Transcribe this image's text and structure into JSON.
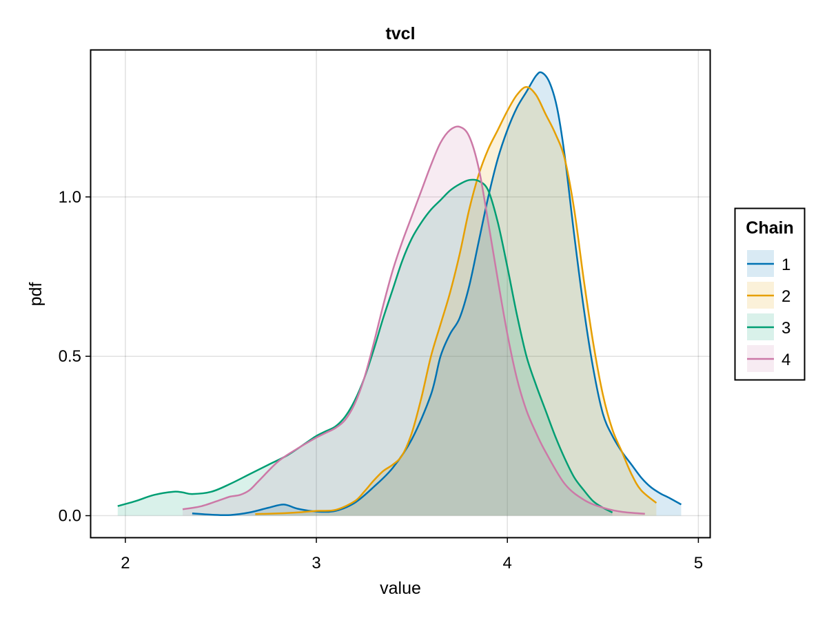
{
  "chart_data": {
    "type": "area",
    "title": "tvcl",
    "xlabel": "value",
    "ylabel": "pdf",
    "xlim": [
      1.82,
      5.06
    ],
    "ylim": [
      -0.068,
      1.46
    ],
    "xticks": [
      "2",
      "3",
      "4",
      "5"
    ],
    "xtick_values": [
      2,
      3,
      4,
      5
    ],
    "yticks": [
      "0.0",
      "0.5",
      "1.0"
    ],
    "ytick_values": [
      0,
      0.5,
      1.0
    ],
    "grid": true,
    "legend": {
      "title": "Chain",
      "placement": "right"
    },
    "series": [
      {
        "name": "1",
        "color": "#0072b2",
        "x": [
          2.35,
          2.45,
          2.55,
          2.65,
          2.75,
          2.83,
          2.9,
          3.0,
          3.1,
          3.2,
          3.3,
          3.4,
          3.5,
          3.6,
          3.65,
          3.7,
          3.75,
          3.8,
          3.85,
          3.9,
          3.95,
          4.0,
          4.05,
          4.1,
          4.15,
          4.18,
          4.22,
          4.26,
          4.3,
          4.35,
          4.4,
          4.45,
          4.5,
          4.55,
          4.6,
          4.65,
          4.7,
          4.75,
          4.8,
          4.85,
          4.91
        ],
        "y": [
          0.007,
          0.003,
          0.002,
          0.01,
          0.025,
          0.035,
          0.022,
          0.013,
          0.015,
          0.04,
          0.09,
          0.15,
          0.24,
          0.38,
          0.5,
          0.57,
          0.62,
          0.72,
          0.86,
          1.0,
          1.12,
          1.21,
          1.28,
          1.33,
          1.38,
          1.39,
          1.36,
          1.28,
          1.13,
          0.88,
          0.65,
          0.46,
          0.32,
          0.25,
          0.2,
          0.16,
          0.12,
          0.09,
          0.07,
          0.055,
          0.035
        ]
      },
      {
        "name": "2",
        "color": "#e69f00",
        "x": [
          2.68,
          2.8,
          2.9,
          3.0,
          3.1,
          3.2,
          3.25,
          3.3,
          3.35,
          3.4,
          3.45,
          3.5,
          3.55,
          3.6,
          3.65,
          3.7,
          3.75,
          3.8,
          3.85,
          3.9,
          3.95,
          4.0,
          4.05,
          4.1,
          4.15,
          4.2,
          4.25,
          4.3,
          4.35,
          4.4,
          4.45,
          4.5,
          4.55,
          4.6,
          4.65,
          4.7,
          4.78
        ],
        "y": [
          0.005,
          0.007,
          0.01,
          0.015,
          0.018,
          0.045,
          0.075,
          0.11,
          0.14,
          0.16,
          0.19,
          0.26,
          0.37,
          0.5,
          0.6,
          0.7,
          0.82,
          0.96,
          1.07,
          1.15,
          1.21,
          1.27,
          1.32,
          1.345,
          1.32,
          1.26,
          1.2,
          1.12,
          0.96,
          0.74,
          0.54,
          0.38,
          0.27,
          0.2,
          0.13,
          0.08,
          0.04
        ]
      },
      {
        "name": "3",
        "color": "#009e73",
        "x": [
          1.96,
          2.05,
          2.15,
          2.25,
          2.3,
          2.35,
          2.45,
          2.55,
          2.65,
          2.75,
          2.85,
          2.95,
          3.0,
          3.05,
          3.1,
          3.15,
          3.2,
          3.25,
          3.3,
          3.35,
          3.4,
          3.45,
          3.5,
          3.55,
          3.6,
          3.65,
          3.7,
          3.75,
          3.8,
          3.85,
          3.9,
          3.95,
          4.0,
          4.05,
          4.1,
          4.15,
          4.2,
          4.25,
          4.3,
          4.35,
          4.4,
          4.45,
          4.5,
          4.55
        ],
        "y": [
          0.03,
          0.045,
          0.065,
          0.075,
          0.073,
          0.068,
          0.075,
          0.1,
          0.13,
          0.16,
          0.19,
          0.23,
          0.25,
          0.265,
          0.28,
          0.31,
          0.36,
          0.43,
          0.52,
          0.62,
          0.71,
          0.8,
          0.87,
          0.92,
          0.96,
          0.99,
          1.02,
          1.04,
          1.053,
          1.05,
          1.02,
          0.92,
          0.78,
          0.63,
          0.5,
          0.41,
          0.33,
          0.25,
          0.18,
          0.12,
          0.08,
          0.045,
          0.025,
          0.01
        ]
      },
      {
        "name": "4",
        "color": "#cc79a7",
        "x": [
          2.3,
          2.4,
          2.5,
          2.55,
          2.6,
          2.65,
          2.7,
          2.8,
          2.9,
          3.0,
          3.05,
          3.1,
          3.15,
          3.2,
          3.25,
          3.3,
          3.35,
          3.4,
          3.45,
          3.5,
          3.55,
          3.6,
          3.65,
          3.7,
          3.75,
          3.8,
          3.85,
          3.9,
          3.95,
          4.0,
          4.05,
          4.1,
          4.15,
          4.2,
          4.3,
          4.4,
          4.5,
          4.6,
          4.72
        ],
        "y": [
          0.02,
          0.03,
          0.05,
          0.06,
          0.065,
          0.08,
          0.11,
          0.17,
          0.21,
          0.245,
          0.26,
          0.275,
          0.3,
          0.35,
          0.43,
          0.54,
          0.66,
          0.77,
          0.86,
          0.94,
          1.02,
          1.1,
          1.17,
          1.21,
          1.22,
          1.19,
          1.09,
          0.92,
          0.74,
          0.57,
          0.43,
          0.33,
          0.26,
          0.2,
          0.1,
          0.05,
          0.025,
          0.012,
          0.006
        ]
      }
    ]
  }
}
